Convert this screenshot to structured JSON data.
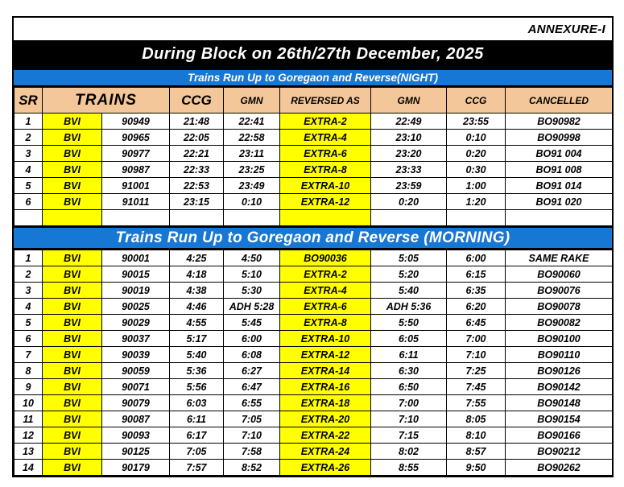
{
  "annexure_label": "ANNEXURE-I",
  "title": "During Block on 26th/27th December, 2025",
  "headers": {
    "sr": "SR",
    "trains": "TRAINS",
    "ccg": "CCG",
    "gmn": "GMN",
    "reversed_as": "REVERSED AS",
    "gmn_return": "GMN",
    "ccg_return": "CCG",
    "cancelled": "CANCELLED"
  },
  "night_section": {
    "title": "Trains Run Up to Goregaon and Reverse(NIGHT)",
    "rows": [
      [
        "1",
        "BVI",
        "90949",
        "21:48",
        "22:41",
        "EXTRA-2",
        "22:49",
        "23:55",
        "BO90982"
      ],
      [
        "2",
        "BVI",
        "90965",
        "22:05",
        "22:58",
        "EXTRA-4",
        "23:10",
        "0:10",
        "BO90998"
      ],
      [
        "3",
        "BVI",
        "90977",
        "22:21",
        "23:11",
        "EXTRA-6",
        "23:20",
        "0:20",
        "BO91 004"
      ],
      [
        "4",
        "BVI",
        "90987",
        "22:33",
        "23:25",
        "EXTRA-8",
        "23:33",
        "0:30",
        "BO91 008"
      ],
      [
        "5",
        "BVI",
        "91001",
        "22:53",
        "23:49",
        "EXTRA-10",
        "23:59",
        "1:00",
        "BO91 014"
      ],
      [
        "6",
        "BVI",
        "91011",
        "23:15",
        "0:10",
        "EXTRA-12",
        "0:20",
        "1:20",
        "BO91 020"
      ],
      [
        "",
        "",
        "",
        "",
        "",
        "",
        "",
        "",
        ""
      ]
    ]
  },
  "morning_section": {
    "title": "Trains Run Up to Goregaon and Reverse (MORNING)",
    "rows": [
      [
        "1",
        "BVI",
        "90001",
        "4:25",
        "4:50",
        "BO90036",
        "5:05",
        "6:00",
        "SAME RAKE"
      ],
      [
        "2",
        "BVI",
        "90015",
        "4:18",
        "5:10",
        "EXTRA-2",
        "5:20",
        "6:15",
        "BO90060"
      ],
      [
        "3",
        "BVI",
        "90019",
        "4:38",
        "5:30",
        "EXTRA-4",
        "5:40",
        "6:35",
        "BO90076"
      ],
      [
        "4",
        "BVI",
        "90025",
        "4:46",
        "ADH 5:28",
        "EXTRA-6",
        "ADH 5:36",
        "6:20",
        "BO90078"
      ],
      [
        "5",
        "BVI",
        "90029",
        "4:55",
        "5:45",
        "EXTRA-8",
        "5:50",
        "6:45",
        "BO90082"
      ],
      [
        "6",
        "BVI",
        "90037",
        "5:17",
        "6:00",
        "EXTRA-10",
        "6:05",
        "7:00",
        "BO90100"
      ],
      [
        "7",
        "BVI",
        "90039",
        "5:40",
        "6:08",
        "EXTRA-12",
        "6:11",
        "7:10",
        "BO90110"
      ],
      [
        "8",
        "BVI",
        "90059",
        "5:36",
        "6:27",
        "EXTRA-14",
        "6:30",
        "7:25",
        "BO90126"
      ],
      [
        "9",
        "BVI",
        "90071",
        "5:56",
        "6:47",
        "EXTRA-16",
        "6:50",
        "7:45",
        "BO90142"
      ],
      [
        "10",
        "BVI",
        "90079",
        "6:03",
        "6:55",
        "EXTRA-18",
        "7:00",
        "7:55",
        "BO90148"
      ],
      [
        "11",
        "BVI",
        "90087",
        "6:11",
        "7:05",
        "EXTRA-20",
        "7:10",
        "8:05",
        "BO90154"
      ],
      [
        "12",
        "BVI",
        "90093",
        "6:17",
        "7:10",
        "EXTRA-22",
        "7:15",
        "8:10",
        "BO90166"
      ],
      [
        "13",
        "BVI",
        "90125",
        "7:05",
        "7:58",
        "EXTRA-24",
        "8:02",
        "8:57",
        "BO90212"
      ],
      [
        "14",
        "BVI",
        "90179",
        "7:57",
        "8:52",
        "EXTRA-26",
        "8:55",
        "9:50",
        "BO90262"
      ]
    ]
  },
  "colors": {
    "section_bar_blue": "#1677D4",
    "header_tan": "#F4C79A",
    "highlight_yellow": "#FFFF00",
    "title_bar_black": "#000000"
  }
}
